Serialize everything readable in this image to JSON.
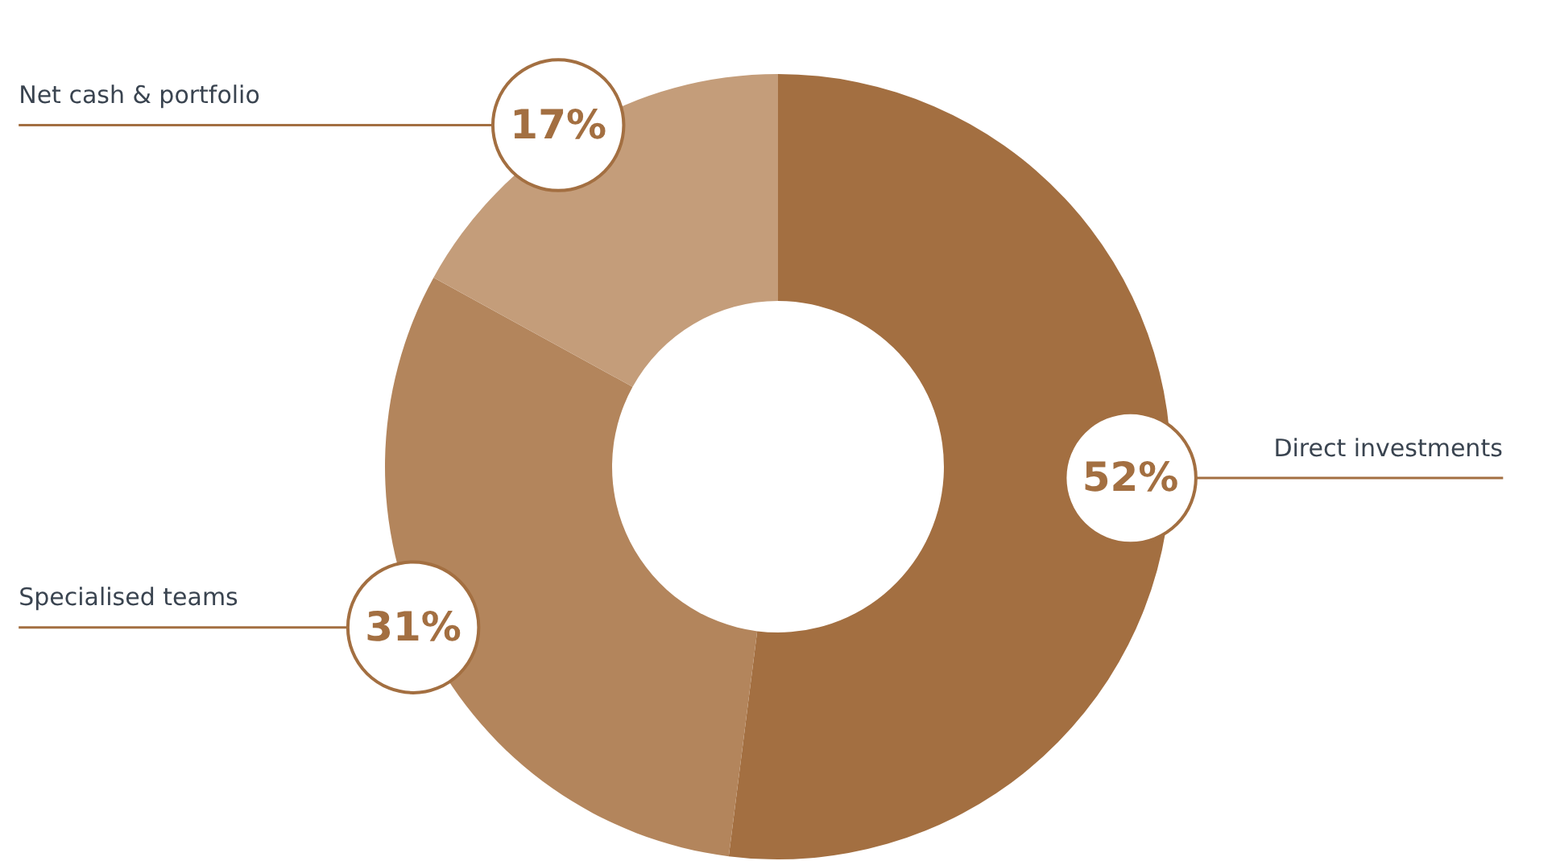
{
  "chart_data": {
    "type": "donut",
    "categories": [
      "Direct investments",
      "Specialised teams",
      "Net cash & portfolio"
    ],
    "values": [
      52,
      31,
      17
    ],
    "colors": [
      "#a36f41",
      "#b3855c",
      "#c49d7a"
    ],
    "value_labels": [
      "52%",
      "31%",
      "17%"
    ]
  }
}
